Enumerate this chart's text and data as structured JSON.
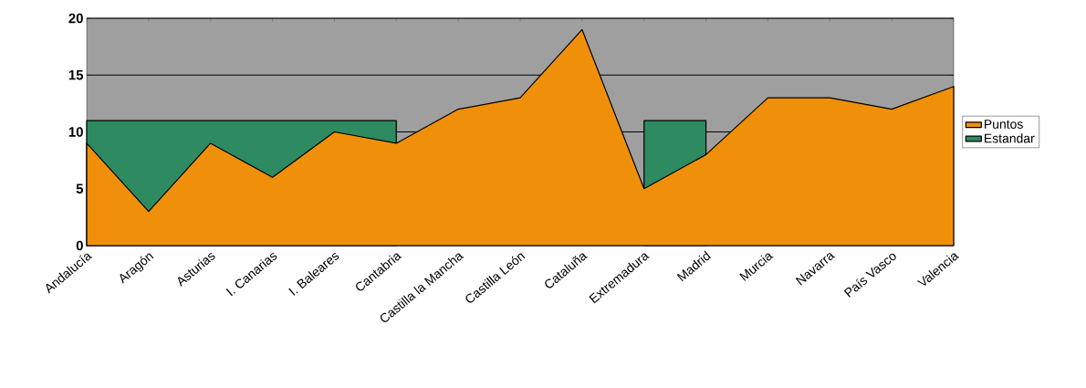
{
  "chart_data": {
    "type": "area",
    "categories": [
      "Andalucía",
      "Aragón",
      "Asturias",
      "I. Canarias",
      "I. Baleares",
      "Cantabria",
      "Castilla la Mancha",
      "Castilla León",
      "Cataluña",
      "Extremadura",
      "Madrid",
      "Murcia",
      "Navarra",
      "País Vasco",
      "Valencia"
    ],
    "series": [
      {
        "name": "Puntos",
        "color": "#f0900a",
        "values": [
          9,
          3,
          9,
          6,
          10,
          9,
          12,
          13,
          19,
          5,
          8,
          13,
          13,
          12,
          14
        ]
      },
      {
        "name": "Estandar",
        "color": "#2e8a60",
        "values": [
          11,
          11,
          11,
          11,
          11,
          11,
          null,
          null,
          null,
          11,
          11,
          null,
          null,
          null,
          null
        ]
      }
    ],
    "ylim": [
      0,
      20
    ],
    "yticks": [
      0,
      5,
      10,
      15,
      20
    ],
    "grid": "y",
    "legend": "right"
  }
}
